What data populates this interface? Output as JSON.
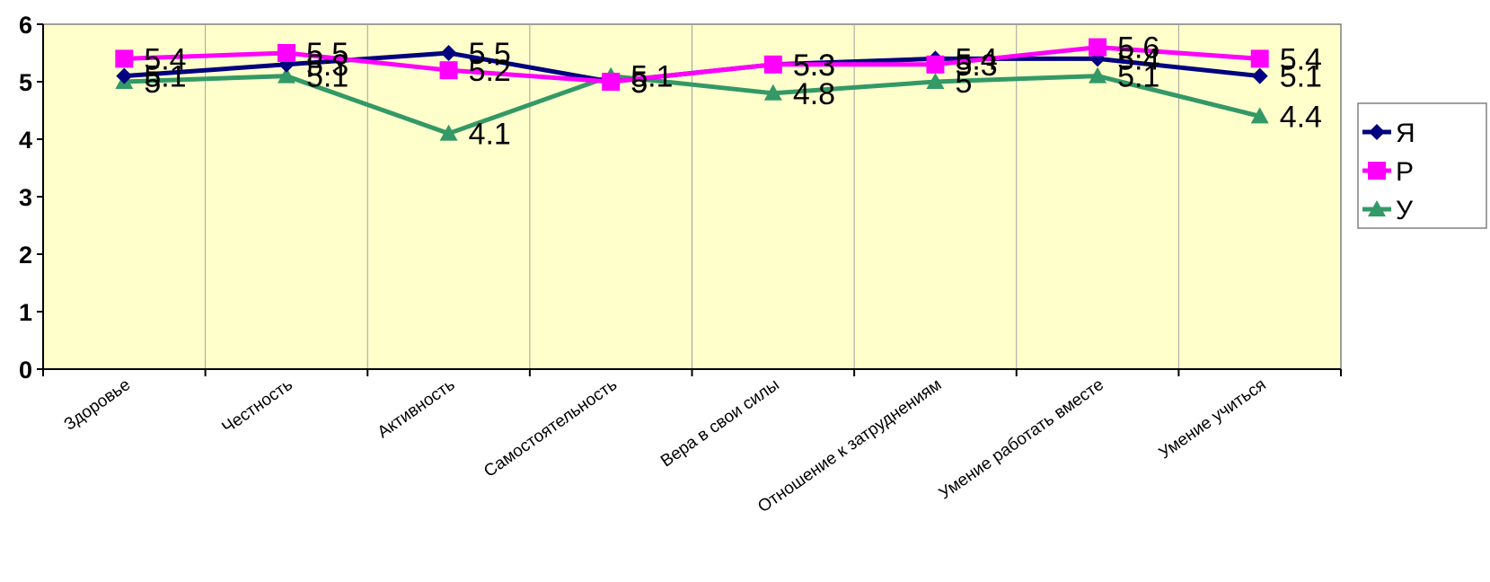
{
  "chart_data": {
    "type": "line",
    "title": "",
    "xlabel": "",
    "ylabel": "",
    "ylim": [
      0,
      6
    ],
    "yticks": [
      "0",
      "1",
      "2",
      "3",
      "4",
      "5",
      "6"
    ],
    "grid": "vertical",
    "legend_position": "right",
    "plot_background": "#FFFFCC",
    "categories": [
      "Здоровье",
      "Честность",
      "Активность",
      "Самостоятельность",
      "Вера в свои силы",
      "Отношение к затруднениям",
      "Умение работать вместе",
      "Умение учиться"
    ],
    "series": [
      {
        "name": "Я",
        "color": "#000080",
        "marker": "diamond",
        "values": [
          5.1,
          5.3,
          5.5,
          5,
          5.3,
          5.4,
          5.4,
          5.1
        ],
        "labels": [
          "5.1",
          "5.3",
          "5.5",
          "5",
          "5.3",
          "5.4",
          "5.4",
          "5.1"
        ]
      },
      {
        "name": "Р",
        "color": "#FF00FF",
        "marker": "square",
        "values": [
          5.4,
          5.5,
          5.2,
          5,
          5.3,
          5.3,
          5.6,
          5.4
        ],
        "labels": [
          "5.4",
          "5.5",
          "5.2",
          "5",
          "5.3",
          "5.3",
          "5.6",
          "5.4"
        ]
      },
      {
        "name": "У",
        "color": "#339966",
        "marker": "triangle",
        "values": [
          5,
          5.1,
          4.1,
          5.1,
          4.8,
          5,
          5.1,
          4.4
        ],
        "labels": [
          "5",
          "5.1",
          "4.1",
          "5.1",
          "4.8",
          "5",
          "5.1",
          "4.4"
        ]
      }
    ]
  }
}
